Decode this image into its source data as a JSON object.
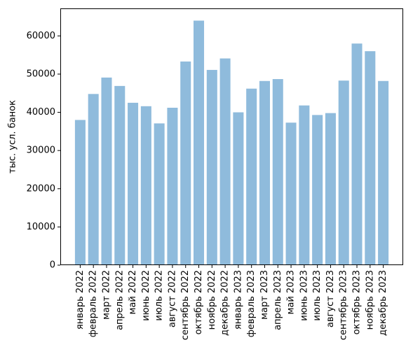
{
  "chart_data": {
    "type": "bar",
    "title": "",
    "xlabel": "",
    "ylabel": "тыс. усл. банок",
    "categories": [
      "январь 2022",
      "февраль 2022",
      "март 2022",
      "апрель 2022",
      "май 2022",
      "июнь 2022",
      "июль 2022",
      "август 2022",
      "сентябрь 2022",
      "октябрь 2022",
      "ноябрь 2022",
      "декабрь 2022",
      "январь 2023",
      "февраль 2023",
      "март 2023",
      "апрель 2023",
      "май 2023",
      "июнь 2023",
      "июль 2023",
      "август 2023",
      "сентябрь 2023",
      "октябрь 2023",
      "ноябрь 2023",
      "декабрь 2023"
    ],
    "values": [
      38000,
      44800,
      49100,
      46900,
      42500,
      41600,
      37100,
      41200,
      53300,
      64000,
      51100,
      54100,
      40000,
      46200,
      48200,
      48700,
      37300,
      41800,
      39300,
      39800,
      48300,
      58000,
      56000,
      48200
    ],
    "ylim": [
      0,
      67200
    ],
    "yticks": [
      0,
      10000,
      20000,
      30000,
      40000,
      50000,
      60000
    ],
    "grid": false,
    "bar_color": "#8fbbdc"
  }
}
